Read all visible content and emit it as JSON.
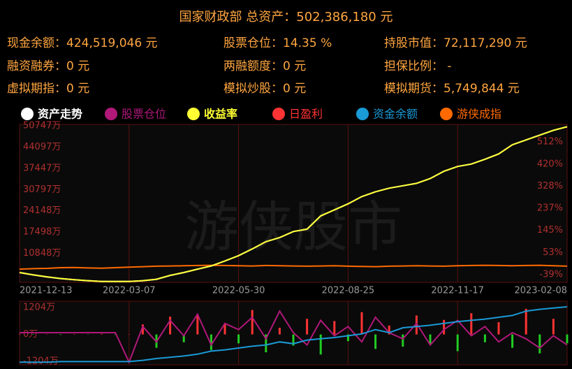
{
  "header": {
    "title": "国家财政部 总资产：502,386,180 元"
  },
  "stats": [
    {
      "label": "现金余额：",
      "value": "424,519,046 元"
    },
    {
      "label": "股票仓位：",
      "value": "14.35 %"
    },
    {
      "label": "持股市值：",
      "value": "72,117,290 元"
    },
    {
      "label": "融资融券：",
      "value": "0 元"
    },
    {
      "label": "两融额度：",
      "value": "0 元"
    },
    {
      "label": "担保比例：",
      "value": " -"
    },
    {
      "label": "虚拟期指：",
      "value": "0 元"
    },
    {
      "label": "模拟炒股：",
      "value": "0 元"
    },
    {
      "label": "模拟期货：",
      "value": "5,749,844 元"
    }
  ],
  "watermark": "游侠股市",
  "chart_data": [
    {
      "type": "line",
      "categories": [
        "2021-12-13",
        null,
        null,
        null,
        null,
        null,
        null,
        null,
        "2022-03-07",
        null,
        null,
        null,
        null,
        null,
        null,
        null,
        "2022-05-30",
        null,
        null,
        null,
        null,
        null,
        null,
        null,
        "2022-08-25",
        null,
        null,
        null,
        null,
        null,
        null,
        null,
        "2022-11-17",
        null,
        null,
        null,
        null,
        null,
        null,
        null,
        "2023-02-08"
      ],
      "ylim": [
        2000,
        50747
      ],
      "yticks": [
        {
          "value": 50747,
          "label": "50747万"
        },
        {
          "value": 44097,
          "label": "44097万"
        },
        {
          "value": 37447,
          "label": "37447万"
        },
        {
          "value": 30797,
          "label": "30797万"
        },
        {
          "value": 24148,
          "label": "24148万"
        },
        {
          "value": 17498,
          "label": "17498万"
        },
        {
          "value": 10848,
          "label": "10848万"
        }
      ],
      "y2lim": [
        -68,
        579
      ],
      "y2ticks": [
        {
          "value": 512,
          "label": "512%"
        },
        {
          "value": 420,
          "label": "420%"
        },
        {
          "value": 328,
          "label": "328%"
        },
        {
          "value": 237,
          "label": "237%"
        },
        {
          "value": 145,
          "label": "145%"
        },
        {
          "value": 53,
          "label": "53%"
        },
        {
          "value": -39,
          "label": "-39%"
        }
      ],
      "series": [
        {
          "name": "资产走势",
          "color": "#ffffff",
          "values": [
            4852,
            4098,
            3495,
            2967,
            2590,
            2288,
            2062,
            2062,
            2062,
            2288,
            2741,
            3947,
            4852,
            5908,
            6888,
            8471,
            10130,
            12241,
            14503,
            15785,
            17670,
            18424,
            22571,
            24456,
            26341,
            28603,
            30111,
            31242,
            31996,
            32750,
            34258,
            36520,
            38028,
            38782,
            40290,
            41949,
            44814,
            46322,
            47830,
            49338,
            50469
          ]
        },
        {
          "name": "收益率",
          "color": "#ffff33",
          "axis": "y2",
          "values": [
            -30,
            -40,
            -48,
            -55,
            -60,
            -64,
            -67,
            -67,
            -67,
            -64,
            -58,
            -42,
            -30,
            -16,
            -3,
            18,
            40,
            68,
            98,
            115,
            140,
            150,
            205,
            230,
            255,
            285,
            305,
            320,
            330,
            340,
            360,
            390,
            410,
            420,
            440,
            462,
            500,
            520,
            540,
            560,
            575
          ]
        },
        {
          "name": "游侠成指",
          "color": "#ff6a00",
          "axis": "y2",
          "values": [
            -16,
            -14,
            -13,
            -10,
            -9,
            -11,
            -12,
            -10,
            -8,
            -6,
            -4,
            -3,
            -2,
            -1,
            0,
            -1,
            -2,
            -3,
            -1,
            -2,
            -3,
            -4,
            -3,
            -2,
            -4,
            -5,
            -6,
            -4,
            -3,
            -2,
            -3,
            -4,
            -2,
            -1,
            0,
            -1,
            -2,
            -1,
            0,
            -2,
            -4
          ]
        }
      ]
    },
    {
      "type": "bar",
      "ylim": [
        -1300,
        1460
      ],
      "yticks": [
        {
          "value": 1204,
          "label": "1204万"
        },
        {
          "value": 0,
          "label": "0万"
        },
        {
          "value": -1204,
          "label": "-1204万"
        }
      ],
      "y2lim": [
        0,
        100
      ],
      "series": [
        {
          "name": "日盈利",
          "type": "bar",
          "color": "#ff3333",
          "negative_color": "#22cc22",
          "values": [
            20,
            -15,
            10,
            -20,
            15,
            -10,
            25,
            -20,
            10,
            450,
            -600,
            800,
            -350,
            900,
            -700,
            500,
            -400,
            1100,
            -800,
            300,
            -500,
            700,
            -900,
            600,
            -300,
            1000,
            -650,
            400,
            -550,
            850,
            -450,
            650,
            -750,
            950,
            -350,
            550,
            -600,
            1150,
            -850,
            700,
            -400
          ]
        },
        {
          "name": "股票仓位",
          "type": "line",
          "axis": "y2",
          "color": "#b0187a",
          "values": [
            50,
            50,
            50,
            50,
            50,
            50,
            50,
            50,
            2,
            60,
            35,
            70,
            45,
            80,
            30,
            65,
            55,
            75,
            40,
            85,
            50,
            30,
            70,
            45,
            60,
            35,
            75,
            50,
            40,
            65,
            30,
            55,
            70,
            45,
            60,
            35,
            50,
            40,
            25,
            45,
            30
          ]
        },
        {
          "name": "资金余额",
          "type": "line",
          "axis": "y2",
          "color": "#1a9ad6",
          "values": [
            2,
            2,
            2,
            3,
            3,
            3,
            3,
            3,
            3,
            5,
            8,
            10,
            12,
            15,
            20,
            22,
            25,
            28,
            30,
            35,
            32,
            38,
            40,
            42,
            45,
            48,
            55,
            50,
            58,
            60,
            62,
            65,
            68,
            70,
            72,
            75,
            78,
            85,
            88,
            90,
            92
          ]
        }
      ]
    }
  ]
}
